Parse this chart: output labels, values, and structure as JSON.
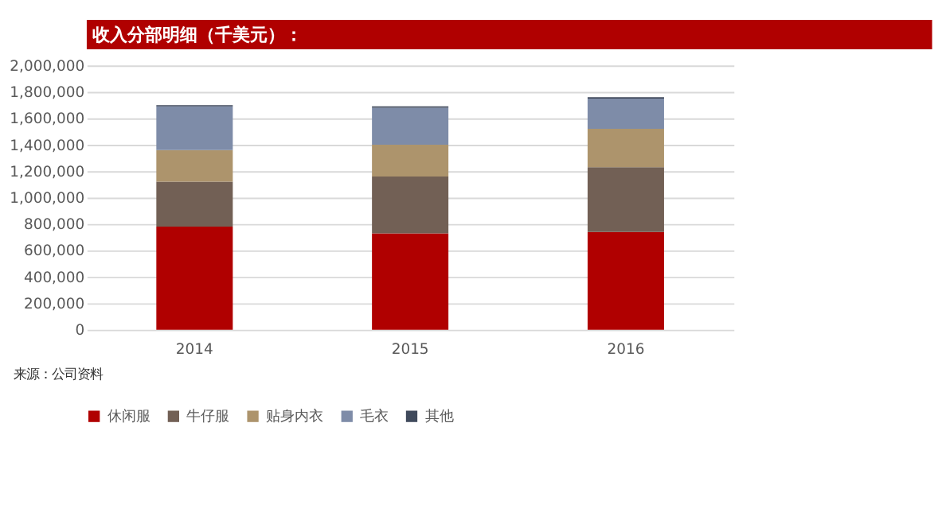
{
  "chart_data": {
    "type": "bar",
    "title": "收入分部明细（千美元）：",
    "stacked": true,
    "categories": [
      "2014",
      "2015",
      "2016"
    ],
    "series": [
      {
        "name": "休闲服",
        "color": "#b00000",
        "values": [
          780000,
          730000,
          740000
        ]
      },
      {
        "name": "牛仔服",
        "color": "#726055",
        "values": [
          340000,
          430000,
          490000
        ]
      },
      {
        "name": "贴身内衣",
        "color": "#ad946c",
        "values": [
          240000,
          240000,
          290000
        ]
      },
      {
        "name": "毛衣",
        "color": "#7e8ca8",
        "values": [
          330000,
          280000,
          230000
        ]
      },
      {
        "name": "其他",
        "color": "#404a5c",
        "values": [
          10000,
          10000,
          10000
        ]
      }
    ],
    "ylim": [
      0,
      2000000
    ],
    "yticks": [
      0,
      {
        "value": 200000,
        "label": "200,000"
      },
      {
        "value": 400000,
        "label": "400,000"
      },
      {
        "value": 600000,
        "label": "600,000"
      },
      {
        "value": 800000,
        "label": "800,000"
      },
      {
        "value": 1000000,
        "label": "1,000,000"
      },
      {
        "value": 1200000,
        "label": "1,200,000"
      },
      {
        "value": 1400000,
        "label": "1,400,000"
      },
      {
        "value": 1600000,
        "label": "1,600,000"
      },
      {
        "value": 1800000,
        "label": "1,800,000"
      },
      {
        "value": 2000000,
        "label": "2,000,000"
      }
    ],
    "grid": "y",
    "legend": "bottom",
    "annotations": [
      "来源：公司资料"
    ]
  }
}
